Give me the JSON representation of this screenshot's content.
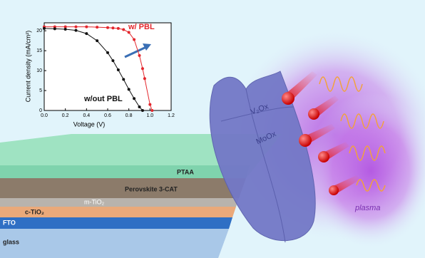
{
  "chart_data": {
    "type": "line",
    "y_label": "Current density (mA/cm²)",
    "x_label": "Voltage (V)",
    "x": [
      0,
      0.1,
      0.2,
      0.3,
      0.4,
      0.5,
      0.6,
      0.65,
      0.7,
      0.75,
      0.8,
      0.85,
      0.9,
      0.93,
      0.95,
      1.0,
      1.02
    ],
    "series": [
      {
        "name": "w/ PBL",
        "color": "#e3262c",
        "values": [
          21,
          21,
          21,
          21,
          21,
          20.9,
          20.8,
          20.7,
          20.6,
          20.3,
          19.6,
          17.8,
          13.8,
          10.5,
          8,
          1.5,
          0
        ]
      },
      {
        "name": "w/out PBL",
        "color": "#111111",
        "values": [
          20.6,
          20.5,
          20.4,
          20.1,
          19.3,
          17.5,
          14.5,
          12.5,
          10.2,
          7.8,
          5.3,
          3,
          0.9,
          0,
          null,
          null,
          null
        ]
      }
    ],
    "xlim": [
      0,
      1.2
    ],
    "xticks": [
      {
        "value": 0,
        "label": "0.0"
      },
      0.2,
      0.4,
      0.6,
      0.8,
      {
        "value": 1,
        "label": "1.0"
      },
      1.2
    ],
    "ylim": [
      0,
      22
    ],
    "yticks": [
      0,
      5,
      10,
      15,
      20
    ]
  },
  "diagram": {
    "layers": [
      "PTAA",
      "Perovskite 3-CAT",
      "m-TiO₂",
      "c-TiO₂",
      "FTO",
      "glass"
    ],
    "mask_layers": [
      "V₂Ox",
      "MoOx"
    ],
    "plasma_label": "plasma"
  }
}
